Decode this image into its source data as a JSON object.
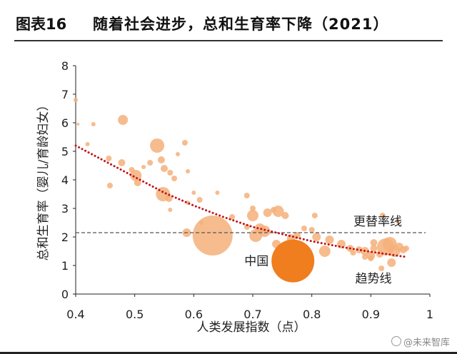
{
  "title": {
    "number": "图表16",
    "text": "随着社会进步，总和生育率下降（2021）"
  },
  "watermark": "@未来智库",
  "colors": {
    "bubble": "#f5b07a",
    "china": "#f07d1e",
    "trend": "#c0161c",
    "replacement": "#555555",
    "axis": "#222222"
  },
  "chart_data": {
    "type": "scatter",
    "xlabel": "人类发展指数（点）",
    "ylabel": "总和生育率（婴儿/育龄妇女）",
    "xlim": [
      0.4,
      1.0
    ],
    "ylim": [
      0,
      8
    ],
    "x_ticks": [
      "0.4",
      "0.5",
      "0.6",
      "0.7",
      "0.8",
      "0.9",
      "1"
    ],
    "y_ticks": [
      "0",
      "1",
      "2",
      "3",
      "4",
      "5",
      "6",
      "7",
      "8"
    ],
    "replacement_rate": {
      "label": "更替率线",
      "y": 2.15
    },
    "trend": {
      "label": "趋势线",
      "points": [
        [
          0.4,
          5.2
        ],
        [
          0.45,
          4.65
        ],
        [
          0.5,
          4.1
        ],
        [
          0.55,
          3.55
        ],
        [
          0.6,
          3.1
        ],
        [
          0.65,
          2.7
        ],
        [
          0.7,
          2.35
        ],
        [
          0.75,
          2.1
        ],
        [
          0.8,
          1.85
        ],
        [
          0.85,
          1.65
        ],
        [
          0.9,
          1.48
        ],
        [
          0.96,
          1.3
        ]
      ]
    },
    "highlight": {
      "label": "中国",
      "x": 0.768,
      "y": 1.16,
      "size": 30
    },
    "points": [
      {
        "x": 0.4,
        "y": 6.8,
        "s": 3
      },
      {
        "x": 0.43,
        "y": 5.95,
        "s": 3
      },
      {
        "x": 0.404,
        "y": 5.95,
        "s": 2
      },
      {
        "x": 0.48,
        "y": 6.1,
        "s": 7
      },
      {
        "x": 0.42,
        "y": 5.25,
        "s": 3
      },
      {
        "x": 0.456,
        "y": 4.75,
        "s": 4
      },
      {
        "x": 0.478,
        "y": 4.6,
        "s": 5
      },
      {
        "x": 0.495,
        "y": 4.35,
        "s": 4
      },
      {
        "x": 0.502,
        "y": 4.15,
        "s": 8
      },
      {
        "x": 0.505,
        "y": 3.9,
        "s": 5
      },
      {
        "x": 0.538,
        "y": 5.2,
        "s": 10
      },
      {
        "x": 0.526,
        "y": 4.6,
        "s": 4
      },
      {
        "x": 0.545,
        "y": 4.7,
        "s": 5
      },
      {
        "x": 0.55,
        "y": 4.4,
        "s": 5
      },
      {
        "x": 0.56,
        "y": 4.25,
        "s": 4
      },
      {
        "x": 0.59,
        "y": 4.3,
        "s": 3
      },
      {
        "x": 0.585,
        "y": 5.3,
        "s": 4
      },
      {
        "x": 0.573,
        "y": 4.9,
        "s": 3
      },
      {
        "x": 0.548,
        "y": 3.5,
        "s": 10
      },
      {
        "x": 0.558,
        "y": 3.35,
        "s": 5
      },
      {
        "x": 0.458,
        "y": 3.8,
        "s": 4
      },
      {
        "x": 0.59,
        "y": 3.2,
        "s": 3
      },
      {
        "x": 0.61,
        "y": 3.3,
        "s": 4
      },
      {
        "x": 0.64,
        "y": 3.55,
        "s": 3
      },
      {
        "x": 0.632,
        "y": 2.05,
        "s": 28
      },
      {
        "x": 0.588,
        "y": 2.15,
        "s": 6
      },
      {
        "x": 0.56,
        "y": 2.95,
        "s": 3
      },
      {
        "x": 0.613,
        "y": 2.5,
        "s": 3
      },
      {
        "x": 0.665,
        "y": 2.7,
        "s": 4
      },
      {
        "x": 0.69,
        "y": 2.35,
        "s": 4
      },
      {
        "x": 0.69,
        "y": 3.45,
        "s": 4
      },
      {
        "x": 0.7,
        "y": 2.75,
        "s": 8
      },
      {
        "x": 0.712,
        "y": 2.3,
        "s": 7
      },
      {
        "x": 0.705,
        "y": 2.05,
        "s": 9
      },
      {
        "x": 0.72,
        "y": 2.2,
        "s": 8
      },
      {
        "x": 0.7,
        "y": 3.0,
        "s": 4
      },
      {
        "x": 0.725,
        "y": 2.85,
        "s": 6
      },
      {
        "x": 0.735,
        "y": 2.95,
        "s": 4
      },
      {
        "x": 0.743,
        "y": 2.9,
        "s": 8
      },
      {
        "x": 0.755,
        "y": 2.75,
        "s": 5
      },
      {
        "x": 0.765,
        "y": 1.95,
        "s": 6
      },
      {
        "x": 0.775,
        "y": 2.05,
        "s": 5
      },
      {
        "x": 0.787,
        "y": 2.3,
        "s": 4
      },
      {
        "x": 0.8,
        "y": 2.25,
        "s": 4
      },
      {
        "x": 0.805,
        "y": 2.75,
        "s": 4
      },
      {
        "x": 0.808,
        "y": 2.0,
        "s": 6
      },
      {
        "x": 0.78,
        "y": 1.35,
        "s": 6
      },
      {
        "x": 0.74,
        "y": 1.75,
        "s": 6
      },
      {
        "x": 0.76,
        "y": 1.7,
        "s": 6
      },
      {
        "x": 0.822,
        "y": 1.5,
        "s": 8
      },
      {
        "x": 0.83,
        "y": 1.9,
        "s": 6
      },
      {
        "x": 0.85,
        "y": 1.75,
        "s": 6
      },
      {
        "x": 0.865,
        "y": 1.6,
        "s": 5
      },
      {
        "x": 0.88,
        "y": 1.55,
        "s": 5
      },
      {
        "x": 0.89,
        "y": 1.5,
        "s": 6
      },
      {
        "x": 0.9,
        "y": 1.35,
        "s": 6
      },
      {
        "x": 0.905,
        "y": 1.6,
        "s": 5
      },
      {
        "x": 0.915,
        "y": 1.4,
        "s": 5
      },
      {
        "x": 0.92,
        "y": 2.75,
        "s": 4
      },
      {
        "x": 0.925,
        "y": 1.65,
        "s": 12
      },
      {
        "x": 0.932,
        "y": 1.75,
        "s": 10
      },
      {
        "x": 0.94,
        "y": 1.5,
        "s": 8
      },
      {
        "x": 0.948,
        "y": 1.65,
        "s": 6
      },
      {
        "x": 0.955,
        "y": 1.55,
        "s": 5
      },
      {
        "x": 0.935,
        "y": 1.1,
        "s": 6
      },
      {
        "x": 0.918,
        "y": 0.9,
        "s": 4
      },
      {
        "x": 0.905,
        "y": 1.8,
        "s": 5
      },
      {
        "x": 0.945,
        "y": 2.55,
        "s": 3
      },
      {
        "x": 0.96,
        "y": 1.6,
        "s": 4
      },
      {
        "x": 0.87,
        "y": 1.45,
        "s": 4
      },
      {
        "x": 0.89,
        "y": 1.3,
        "s": 4
      },
      {
        "x": 0.9,
        "y": 1.25,
        "s": 4
      },
      {
        "x": 0.515,
        "y": 4.45,
        "s": 3
      },
      {
        "x": 0.567,
        "y": 4.05,
        "s": 4
      },
      {
        "x": 0.6,
        "y": 3.55,
        "s": 3
      }
    ]
  }
}
